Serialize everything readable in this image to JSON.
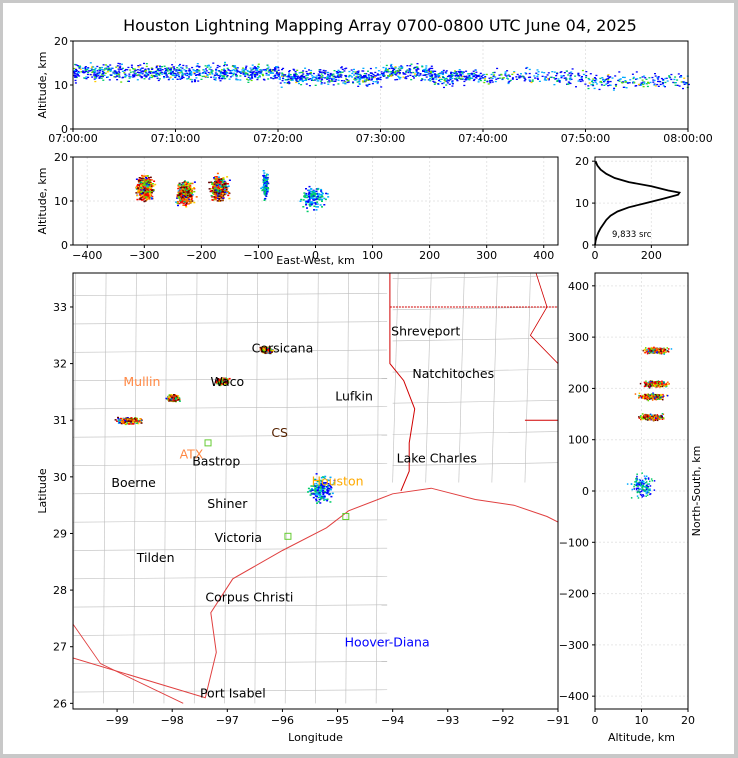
{
  "title": "Houston Lightning Mapping Array 0700-0800 UTC June 04, 2025",
  "colors": {
    "frame": "#c8c8c8",
    "county": "#bdbdbd",
    "coast": "#e04040",
    "state": "#d00000",
    "ensemble": [
      "#0000ff",
      "#00aaff",
      "#00cc66",
      "#66dd00",
      "#ffcc00",
      "#ff6600",
      "#ff0000",
      "#660000"
    ]
  },
  "chart_data": [
    {
      "type": "scatter",
      "name_key": "time_height",
      "xlabel": "",
      "ylabel": "Altitude, km",
      "x_ticks": [
        "07:00:00",
        "07:10:00",
        "07:20:00",
        "07:30:00",
        "07:40:00",
        "07:50:00",
        "08:00:00"
      ],
      "y_ticks": [
        "0",
        "10",
        "20"
      ],
      "xlim": [
        "07:00:00",
        "08:00:00"
      ],
      "ylim": [
        0,
        20
      ],
      "description_points": [
        {
          "t": "07:00:00",
          "alt": 13
        },
        {
          "t": "07:05:00",
          "alt": 13
        },
        {
          "t": "07:10:00",
          "alt": 13
        },
        {
          "t": "07:15:00",
          "alt": 13
        },
        {
          "t": "07:20:00",
          "alt": 12
        },
        {
          "t": "07:25:00",
          "alt": 12
        },
        {
          "t": "07:30:00",
          "alt": 13
        },
        {
          "t": "07:35:00",
          "alt": 12
        },
        {
          "t": "07:40:00",
          "alt": 12
        },
        {
          "t": "07:45:00",
          "alt": 12
        },
        {
          "t": "07:50:00",
          "alt": 11
        },
        {
          "t": "07:55:00",
          "alt": 11
        }
      ]
    },
    {
      "type": "scatter",
      "name_key": "ew_height",
      "xlabel": "East-West, km",
      "ylabel": "Altitude, km",
      "x_ticks": [
        "−400",
        "−300",
        "−200",
        "−100",
        "0",
        "100",
        "200",
        "300",
        "400"
      ],
      "y_ticks": [
        "0",
        "10",
        "20"
      ],
      "xlim": [
        -425,
        425
      ],
      "ylim": [
        0,
        20
      ],
      "clusters": [
        {
          "x": -300,
          "alt": 13
        },
        {
          "x": -230,
          "alt": 12
        },
        {
          "x": -170,
          "alt": 13
        },
        {
          "x": -90,
          "alt": 14
        },
        {
          "x": -5,
          "alt": 11
        }
      ]
    },
    {
      "type": "line",
      "name_key": "altitude_histogram",
      "annotation": "9,833 src",
      "x_ticks": [
        "0",
        "200"
      ],
      "y_ticks": [
        "0",
        "10",
        "20"
      ],
      "xlim": [
        0,
        330
      ],
      "ylim": [
        0,
        21
      ],
      "points": [
        {
          "x": 0,
          "y": 0
        },
        {
          "x": 2,
          "y": 1
        },
        {
          "x": 6,
          "y": 2
        },
        {
          "x": 12,
          "y": 3
        },
        {
          "x": 20,
          "y": 4
        },
        {
          "x": 30,
          "y": 5
        },
        {
          "x": 40,
          "y": 6
        },
        {
          "x": 55,
          "y": 7
        },
        {
          "x": 80,
          "y": 8
        },
        {
          "x": 120,
          "y": 9
        },
        {
          "x": 180,
          "y": 10
        },
        {
          "x": 240,
          "y": 11
        },
        {
          "x": 295,
          "y": 12
        },
        {
          "x": 300,
          "y": 12.5
        },
        {
          "x": 260,
          "y": 13
        },
        {
          "x": 200,
          "y": 14
        },
        {
          "x": 120,
          "y": 15
        },
        {
          "x": 70,
          "y": 16
        },
        {
          "x": 40,
          "y": 17
        },
        {
          "x": 20,
          "y": 18
        },
        {
          "x": 8,
          "y": 19
        },
        {
          "x": 2,
          "y": 20
        }
      ]
    },
    {
      "type": "scatter",
      "name_key": "plan_view",
      "xlabel": "Longitude",
      "ylabel": "Latitude",
      "x_ticks": [
        "−99",
        "−98",
        "−97",
        "−96",
        "−95",
        "−94",
        "−93",
        "−92",
        "−91"
      ],
      "y_ticks": [
        "26",
        "27",
        "28",
        "29",
        "30",
        "31",
        "32",
        "33"
      ],
      "xlim": [
        -99.8,
        -91
      ],
      "ylim": [
        25.9,
        33.6
      ],
      "clusters": [
        {
          "lon": -98.8,
          "lat": 31.0
        },
        {
          "lon": -98.0,
          "lat": 31.4
        },
        {
          "lon": -97.1,
          "lat": 31.7
        },
        {
          "lon": -96.3,
          "lat": 32.25
        },
        {
          "lon": -95.3,
          "lat": 29.8
        }
      ],
      "sites": [
        {
          "lon": -97.35,
          "lat": 30.6
        },
        {
          "lon": -95.9,
          "lat": 28.95
        },
        {
          "lon": -94.85,
          "lat": 29.3
        }
      ]
    },
    {
      "type": "scatter",
      "name_key": "height_ns",
      "xlabel": "Altitude, km",
      "ylabel": "North-South, km",
      "x_ticks": [
        "0",
        "10",
        "20"
      ],
      "y_ticks": [
        "−400",
        "−300",
        "−200",
        "−100",
        "0",
        "100",
        "200",
        "300",
        "400"
      ],
      "xlim": [
        0,
        20
      ],
      "ylim": [
        -425,
        425
      ],
      "clusters": [
        {
          "alt": 13,
          "ns": 275
        },
        {
          "alt": 13,
          "ns": 210
        },
        {
          "alt": 12,
          "ns": 185
        },
        {
          "alt": 12,
          "ns": 145
        },
        {
          "alt": 10,
          "ns": 10
        }
      ]
    }
  ],
  "cities": [
    {
      "name": "Shreveport",
      "lon": -93.4,
      "lat": 32.5,
      "color": "#000000"
    },
    {
      "name": "Natchitoches",
      "lon": -92.9,
      "lat": 31.75,
      "color": "#000000"
    },
    {
      "name": "Lufkin",
      "lon": -94.7,
      "lat": 31.35,
      "color": "#000000"
    },
    {
      "name": "Lake Charles",
      "lon": -93.2,
      "lat": 30.25,
      "color": "#000000"
    },
    {
      "name": "Boerne",
      "lon": -98.7,
      "lat": 29.82,
      "color": "#000000"
    },
    {
      "name": "Bastrop",
      "lon": -97.2,
      "lat": 30.2,
      "color": "#000000"
    },
    {
      "name": "Shiner",
      "lon": -97.0,
      "lat": 29.45,
      "color": "#000000"
    },
    {
      "name": "Victoria",
      "lon": -96.8,
      "lat": 28.85,
      "color": "#000000"
    },
    {
      "name": "Tilden",
      "lon": -98.3,
      "lat": 28.5,
      "color": "#000000"
    },
    {
      "name": "Corpus Christi",
      "lon": -96.6,
      "lat": 27.8,
      "color": "#000000"
    },
    {
      "name": "Port Isabel",
      "lon": -96.9,
      "lat": 26.1,
      "color": "#000000"
    },
    {
      "name": "Mullin",
      "lon": -98.55,
      "lat": 31.6,
      "color": "#ff8844"
    },
    {
      "name": "ATX",
      "lon": -97.65,
      "lat": 30.32,
      "color": "#ff8844"
    },
    {
      "name": "CS",
      "lon": -96.05,
      "lat": 30.7,
      "color": "#552200"
    },
    {
      "name": "Houston",
      "lon": -95.0,
      "lat": 29.85,
      "color": "#ffaa00"
    },
    {
      "name": "Corsicana",
      "lon": -96.0,
      "lat": 32.2,
      "color": "#000000"
    },
    {
      "name": "Waco",
      "lon": -97.0,
      "lat": 31.6,
      "color": "#000000"
    },
    {
      "name": "Hoover-Diana",
      "lon": -94.1,
      "lat": 27.0,
      "color": "#0000ff"
    }
  ],
  "hist_label": "9,833 src"
}
